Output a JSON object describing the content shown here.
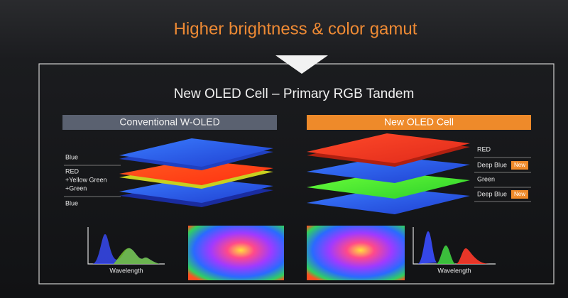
{
  "header": {
    "title": "Higher brightness & color gamut"
  },
  "slide": {
    "title": "New OLED Cell – Primary RGB Tandem"
  },
  "panels": [
    {
      "title": "Conventional W-OLED",
      "layers": [
        {
          "lines": [
            "Blue"
          ]
        },
        {
          "lines": [
            "RED",
            "+Yellow Green",
            "+Green"
          ]
        },
        {
          "lines": [
            "Blue"
          ]
        }
      ],
      "axis_label": "Wavelength"
    },
    {
      "title": "New OLED Cell",
      "layers": [
        {
          "lines": [
            "RED"
          ]
        },
        {
          "lines": [
            "Deep Blue"
          ],
          "badge": "New"
        },
        {
          "lines": [
            "Green"
          ]
        },
        {
          "lines": [
            "Deep Blue"
          ],
          "badge": "New"
        }
      ],
      "axis_label": "Wavelength"
    }
  ]
}
